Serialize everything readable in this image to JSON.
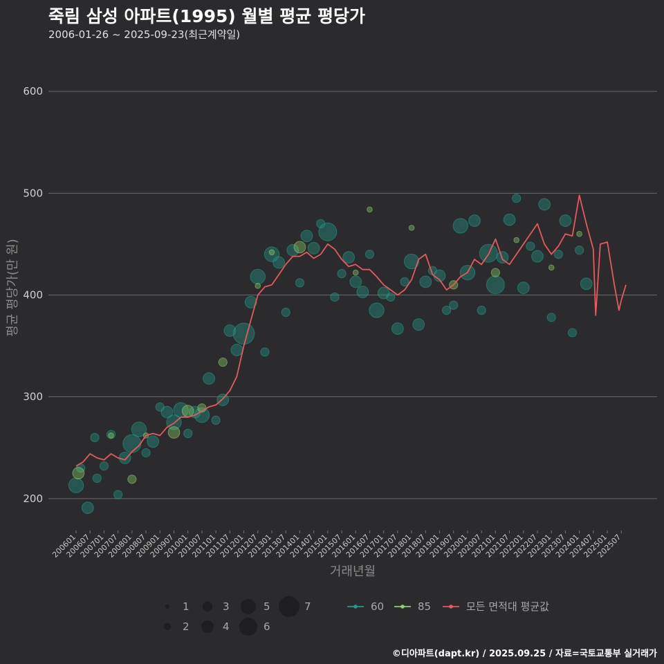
{
  "header": {
    "title": "죽림 삼성 아파트(1995) 월별 평균 평당가",
    "subtitle": "2006-01-26 ~ 2025-09-23(최근계약일)",
    "credit": "©디아파트(dapt.kr) / 2025.09.25 / 자료=국토교통부 실거래가"
  },
  "colors": {
    "background": "#2b2b2d",
    "area60": "#1f9e89",
    "area85": "#8fd16a",
    "average": "#e8585c"
  },
  "chart_data": {
    "type": "line",
    "xlabel": "거래년월",
    "ylabel": "평균 평당가(만 원)",
    "ylim": [
      170,
      630
    ],
    "yticks": [
      200,
      300,
      400,
      500,
      600
    ],
    "start": "200601",
    "end": "202509",
    "xticks": [
      "200601",
      "200607",
      "200701",
      "200707",
      "200801",
      "200807",
      "200901",
      "200907",
      "201001",
      "201007",
      "201101",
      "201107",
      "201201",
      "201207",
      "201301",
      "201307",
      "201401",
      "201407",
      "201501",
      "201507",
      "201601",
      "201607",
      "201701",
      "201707",
      "201801",
      "201807",
      "201901",
      "201907",
      "202001",
      "202007",
      "202101",
      "202107",
      "202201",
      "202207",
      "202301",
      "202307",
      "202401",
      "202407",
      "202501",
      "202507"
    ],
    "series": [
      {
        "name": "모든 면적대 평균값",
        "type": "line",
        "anchors": [
          [
            "200601",
            232
          ],
          [
            "200604",
            236
          ],
          [
            "200607",
            244
          ],
          [
            "200610",
            240
          ],
          [
            "200701",
            238
          ],
          [
            "200704",
            244
          ],
          [
            "200707",
            240
          ],
          [
            "200710",
            238
          ],
          [
            "200801",
            246
          ],
          [
            "200804",
            252
          ],
          [
            "200807",
            262
          ],
          [
            "200810",
            264
          ],
          [
            "200901",
            262
          ],
          [
            "200904",
            270
          ],
          [
            "200907",
            274
          ],
          [
            "200910",
            280
          ],
          [
            "201001",
            280
          ],
          [
            "201004",
            282
          ],
          [
            "201007",
            286
          ],
          [
            "201010",
            290
          ],
          [
            "201101",
            292
          ],
          [
            "201104",
            298
          ],
          [
            "201107",
            306
          ],
          [
            "201110",
            320
          ],
          [
            "201201",
            350
          ],
          [
            "201204",
            375
          ],
          [
            "201207",
            400
          ],
          [
            "201210",
            408
          ],
          [
            "201301",
            410
          ],
          [
            "201304",
            420
          ],
          [
            "201307",
            430
          ],
          [
            "201310",
            438
          ],
          [
            "201401",
            438
          ],
          [
            "201404",
            442
          ],
          [
            "201407",
            436
          ],
          [
            "201410",
            440
          ],
          [
            "201501",
            450
          ],
          [
            "201504",
            445
          ],
          [
            "201507",
            435
          ],
          [
            "201510",
            428
          ],
          [
            "201601",
            430
          ],
          [
            "201604",
            425
          ],
          [
            "201607",
            425
          ],
          [
            "201610",
            418
          ],
          [
            "201701",
            410
          ],
          [
            "201704",
            405
          ],
          [
            "201707",
            400
          ],
          [
            "201710",
            405
          ],
          [
            "201801",
            415
          ],
          [
            "201804",
            435
          ],
          [
            "201807",
            440
          ],
          [
            "201810",
            420
          ],
          [
            "201901",
            415
          ],
          [
            "201904",
            405
          ],
          [
            "201907",
            410
          ],
          [
            "201910",
            418
          ],
          [
            "202001",
            422
          ],
          [
            "202004",
            435
          ],
          [
            "202007",
            430
          ],
          [
            "202010",
            440
          ],
          [
            "202101",
            455
          ],
          [
            "202104",
            435
          ],
          [
            "202107",
            430
          ],
          [
            "202110",
            440
          ],
          [
            "202201",
            450
          ],
          [
            "202204",
            460
          ],
          [
            "202207",
            470
          ],
          [
            "202210",
            450
          ],
          [
            "202301",
            440
          ],
          [
            "202304",
            448
          ],
          [
            "202307",
            460
          ],
          [
            "202310",
            458
          ],
          [
            "202401",
            498
          ],
          [
            "202404",
            470
          ],
          [
            "202407",
            445
          ],
          [
            "202408",
            380
          ],
          [
            "202410",
            450
          ],
          [
            "202501",
            452
          ],
          [
            "202504",
            410
          ],
          [
            "202506",
            385
          ],
          [
            "202507",
            395
          ],
          [
            "202509",
            410
          ]
        ]
      },
      {
        "name": "60",
        "type": "bubble",
        "points": [
          [
            "200601",
            213,
            4
          ],
          [
            "200603",
            230,
            2
          ],
          [
            "200606",
            191,
            3
          ],
          [
            "200609",
            260,
            2
          ],
          [
            "200610",
            220,
            2
          ],
          [
            "200701",
            232,
            2
          ],
          [
            "200704",
            263,
            2
          ],
          [
            "200707",
            204,
            2
          ],
          [
            "200710",
            240,
            3
          ],
          [
            "200801",
            254,
            5
          ],
          [
            "200804",
            268,
            4
          ],
          [
            "200807",
            245,
            2
          ],
          [
            "200810",
            256,
            3
          ],
          [
            "200901",
            290,
            2
          ],
          [
            "200904",
            285,
            3
          ],
          [
            "200907",
            275,
            4
          ],
          [
            "200910",
            287,
            4
          ],
          [
            "201001",
            264,
            2
          ],
          [
            "201004",
            285,
            3
          ],
          [
            "201007",
            282,
            4
          ],
          [
            "201010",
            318,
            3
          ],
          [
            "201101",
            277,
            2
          ],
          [
            "201104",
            297,
            3
          ],
          [
            "201107",
            365,
            3
          ],
          [
            "201110",
            346,
            3
          ],
          [
            "201201",
            362,
            6
          ],
          [
            "201204",
            393,
            3
          ],
          [
            "201207",
            418,
            4
          ],
          [
            "201210",
            344,
            2
          ],
          [
            "201301",
            440,
            4
          ],
          [
            "201304",
            432,
            3
          ],
          [
            "201307",
            383,
            2
          ],
          [
            "201310",
            444,
            3
          ],
          [
            "201401",
            412,
            2
          ],
          [
            "201404",
            458,
            3
          ],
          [
            "201407",
            446,
            3
          ],
          [
            "201410",
            470,
            2
          ],
          [
            "201501",
            462,
            5
          ],
          [
            "201504",
            398,
            2
          ],
          [
            "201507",
            421,
            2
          ],
          [
            "201510",
            437,
            3
          ],
          [
            "201601",
            413,
            3
          ],
          [
            "201604",
            403,
            3
          ],
          [
            "201607",
            440,
            2
          ],
          [
            "201610",
            385,
            4
          ],
          [
            "201701",
            402,
            3
          ],
          [
            "201704",
            398,
            2
          ],
          [
            "201707",
            367,
            3
          ],
          [
            "201710",
            413,
            2
          ],
          [
            "201801",
            433,
            4
          ],
          [
            "201804",
            371,
            3
          ],
          [
            "201807",
            413,
            3
          ],
          [
            "201810",
            424,
            2
          ],
          [
            "201901",
            419,
            3
          ],
          [
            "201904",
            385,
            2
          ],
          [
            "201907",
            390,
            2
          ],
          [
            "201910",
            468,
            4
          ],
          [
            "202001",
            422,
            4
          ],
          [
            "202004",
            473,
            3
          ],
          [
            "202007",
            385,
            2
          ],
          [
            "202010",
            441,
            5
          ],
          [
            "202101",
            410,
            5
          ],
          [
            "202104",
            437,
            3
          ],
          [
            "202107",
            474,
            3
          ],
          [
            "202110",
            495,
            2
          ],
          [
            "202201",
            407,
            3
          ],
          [
            "202204",
            448,
            2
          ],
          [
            "202207",
            438,
            3
          ],
          [
            "202210",
            489,
            3
          ],
          [
            "202301",
            378,
            2
          ],
          [
            "202304",
            440,
            2
          ],
          [
            "202307",
            473,
            3
          ],
          [
            "202310",
            363,
            2
          ],
          [
            "202401",
            444,
            2
          ],
          [
            "202404",
            411,
            3
          ]
        ]
      },
      {
        "name": "85",
        "type": "bubble",
        "points": [
          [
            "200602",
            225,
            3
          ],
          [
            "200704",
            262,
            1
          ],
          [
            "200801",
            219,
            2
          ],
          [
            "200807",
            262,
            1
          ],
          [
            "200907",
            265,
            3
          ],
          [
            "201001",
            286,
            3
          ],
          [
            "201007",
            289,
            2
          ],
          [
            "201104",
            334,
            2
          ],
          [
            "201207",
            409,
            1
          ],
          [
            "201301",
            442,
            1
          ],
          [
            "201401",
            447,
            3
          ],
          [
            "201601",
            422,
            1
          ],
          [
            "201607",
            484,
            1
          ],
          [
            "201801",
            466,
            1
          ],
          [
            "201907",
            410,
            2
          ],
          [
            "202101",
            422,
            2
          ],
          [
            "202110",
            454,
            1
          ],
          [
            "202301",
            427,
            1
          ],
          [
            "202401",
            460,
            1
          ]
        ]
      }
    ],
    "legend": {
      "sizes": [
        "1",
        "2",
        "3",
        "4",
        "5",
        "6",
        "7"
      ],
      "series": [
        "60",
        "85",
        "모든 면적대 평균값"
      ]
    }
  }
}
